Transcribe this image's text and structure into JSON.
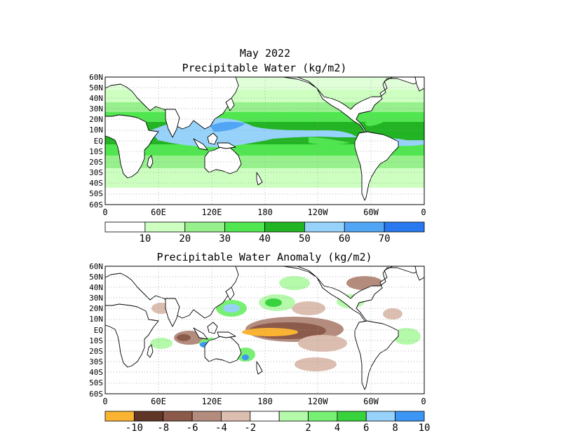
{
  "title": {
    "line1": "May 2022",
    "line2": "Precipitable Water (kg/m2)",
    "line3": "Precipitable Water Anomaly (kg/m2)"
  },
  "axes": {
    "lat_labels": [
      "60N",
      "50N",
      "40N",
      "30N",
      "20N",
      "10N",
      "EQ",
      "10S",
      "20S",
      "30S",
      "40S",
      "50S",
      "60S"
    ],
    "lon_labels": [
      "0",
      "60E",
      "120E",
      "180",
      "120W",
      "60W",
      "0"
    ]
  },
  "colors": {
    "land_fill": "#ffffff",
    "coast": "#000000",
    "grid": "#9a9a9a",
    "pw_scale": [
      "#ffffff",
      "#ccffc0",
      "#96f08c",
      "#50e650",
      "#22b422",
      "#96d2fa",
      "#50a5f5",
      "#2878f0"
    ],
    "anom_scale": [
      "#fab432",
      "#603626",
      "#8c5a4a",
      "#b48c7e",
      "#dcbeb0",
      "#ffffff",
      "#b4faaa",
      "#78f073",
      "#37d23c",
      "#96d2fa",
      "#3c96f5"
    ]
  },
  "map_data": {
    "pw_colorbar": {
      "labels": [
        "10",
        "20",
        "30",
        "40",
        "50",
        "60",
        "70"
      ]
    },
    "anomaly_colorbar": {
      "labels": [
        "-10",
        "-8",
        "-6",
        "-4",
        "-2",
        "2",
        "4",
        "6",
        "8",
        "10"
      ]
    }
  }
}
